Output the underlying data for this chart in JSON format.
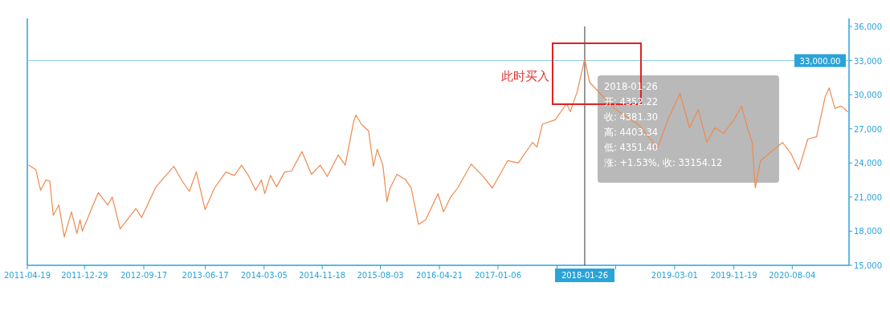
{
  "chart_data": {
    "type": "line",
    "x": [
      "2011-04-26",
      "2011-05-27",
      "2011-06-17",
      "2011-07-11",
      "2011-07-28",
      "2011-08-12",
      "2011-09-06",
      "2011-09-30",
      "2011-11-01",
      "2011-11-25",
      "2011-12-09",
      "2011-12-19",
      "2012-02-28",
      "2012-04-10",
      "2012-04-30",
      "2012-06-04",
      "2012-08-13",
      "2012-09-07",
      "2012-11-10",
      "2013-01-28",
      "2013-03-07",
      "2013-04-07",
      "2013-05-08",
      "2013-06-16",
      "2013-07-28",
      "2013-09-16",
      "2013-10-24",
      "2013-11-25",
      "2013-12-25",
      "2014-01-26",
      "2014-02-21",
      "2014-03-08",
      "2014-04-02",
      "2014-04-29",
      "2014-06-04",
      "2014-07-05",
      "2014-08-20",
      "2014-10-01",
      "2014-11-09",
      "2014-12-10",
      "2015-01-28",
      "2015-02-28",
      "2015-04-07",
      "2015-04-17",
      "2015-05-11",
      "2015-06-12",
      "2015-07-03",
      "2015-07-20",
      "2015-08-14",
      "2015-09-01",
      "2015-09-15",
      "2015-10-16",
      "2015-11-24",
      "2015-12-18",
      "2016-01-19",
      "2016-02-20",
      "2016-04-15",
      "2016-05-09",
      "2016-06-10",
      "2016-07-11",
      "2016-09-09",
      "2016-10-28",
      "2016-12-12",
      "2017-02-18",
      "2017-04-06",
      "2017-06-08",
      "2017-06-28",
      "2017-07-22",
      "2017-09-17",
      "2017-11-06",
      "2017-11-23",
      "2017-12-24",
      "2018-01-26",
      "2018-02-16",
      "2018-06-06",
      "2018-09-26",
      "2018-12-15",
      "2019-01-30",
      "2019-03-25",
      "2019-05-06",
      "2019-06-14",
      "2019-07-22",
      "2019-08-26",
      "2019-10-04",
      "2019-11-19",
      "2019-12-23",
      "2020-01-21",
      "2020-02-08",
      "2020-02-22",
      "2020-03-16",
      "2020-05-04",
      "2020-06-22",
      "2020-07-30",
      "2020-09-01",
      "2020-10-12",
      "2020-11-20",
      "2020-12-28",
      "2021-01-15",
      "2021-02-09",
      "2021-03-10",
      "2021-04-07"
    ],
    "series": [
      {
        "color": "#ee8a4f",
        "values": [
          23800,
          23400,
          21600,
          22500,
          22400,
          19400,
          20300,
          17500,
          19700,
          17800,
          19000,
          18000,
          21400,
          20300,
          21000,
          18200,
          20000,
          19200,
          21900,
          23700,
          22400,
          21500,
          23200,
          19900,
          21800,
          23200,
          22900,
          23800,
          22900,
          21600,
          22500,
          21300,
          22900,
          21900,
          23200,
          23300,
          25000,
          23000,
          23800,
          22800,
          24700,
          23800,
          27700,
          28200,
          27400,
          26800,
          23700,
          25200,
          23800,
          20600,
          21800,
          23000,
          22500,
          21800,
          18600,
          19000,
          21300,
          19700,
          21000,
          21800,
          23900,
          22900,
          21800,
          24200,
          24000,
          25800,
          25400,
          27400,
          27800,
          29200,
          28500,
          30300,
          33150,
          31100,
          28800,
          27300,
          25300,
          27800,
          30100,
          27100,
          28700,
          25800,
          27100,
          26600,
          27800,
          29000,
          26900,
          25800,
          21800,
          24200,
          25000,
          25800,
          24800,
          23400,
          26100,
          26300,
          29800,
          30600,
          28800,
          29000,
          28500
        ]
      }
    ],
    "xlim": [
      "2011-04-19",
      "2021-04-13"
    ],
    "xticks": [
      "2011-04-19",
      "2011-12-29",
      "2012-09-17",
      "2013-06-17",
      "2014-03-05",
      "2014-11-18",
      "2015-08-03",
      "2016-04-21",
      "2017-01-06",
      {
        "value": "2017-09-25",
        "label": null
      },
      {
        "value": "2018-06-12",
        "label": null
      },
      "2019-03-01",
      "2019-11-19",
      "2020-08-04"
    ],
    "ylim": [
      15000,
      36000
    ],
    "yticks": [
      {
        "value": 15000,
        "label": "15,000"
      },
      {
        "value": 18000,
        "label": "18,000"
      },
      {
        "value": 21000,
        "label": "21,000"
      },
      {
        "value": 24000,
        "label": "24,000"
      },
      {
        "value": 27000,
        "label": "27,000"
      },
      {
        "value": 30000,
        "label": "30,000"
      },
      {
        "value": 33000,
        "label": "33,000"
      },
      {
        "value": 36000,
        "label": "36,000"
      }
    ],
    "ref_lines": [
      {
        "axis": "y",
        "value": 33000,
        "label": "33,000.00",
        "color": "#8ccbe6"
      },
      {
        "axis": "x",
        "value": "2018-01-26",
        "label": "2018-01-26",
        "color": "#333333"
      }
    ],
    "annotations": [
      "此时买入",
      "2018-01-26",
      "开: 4352.22",
      "收: 4381.30",
      "高: 4403.34",
      "低: 4351.40",
      "涨: +1.53%, 收: 33154.12"
    ],
    "grid": false,
    "marker": "none",
    "line_style": "solid"
  }
}
